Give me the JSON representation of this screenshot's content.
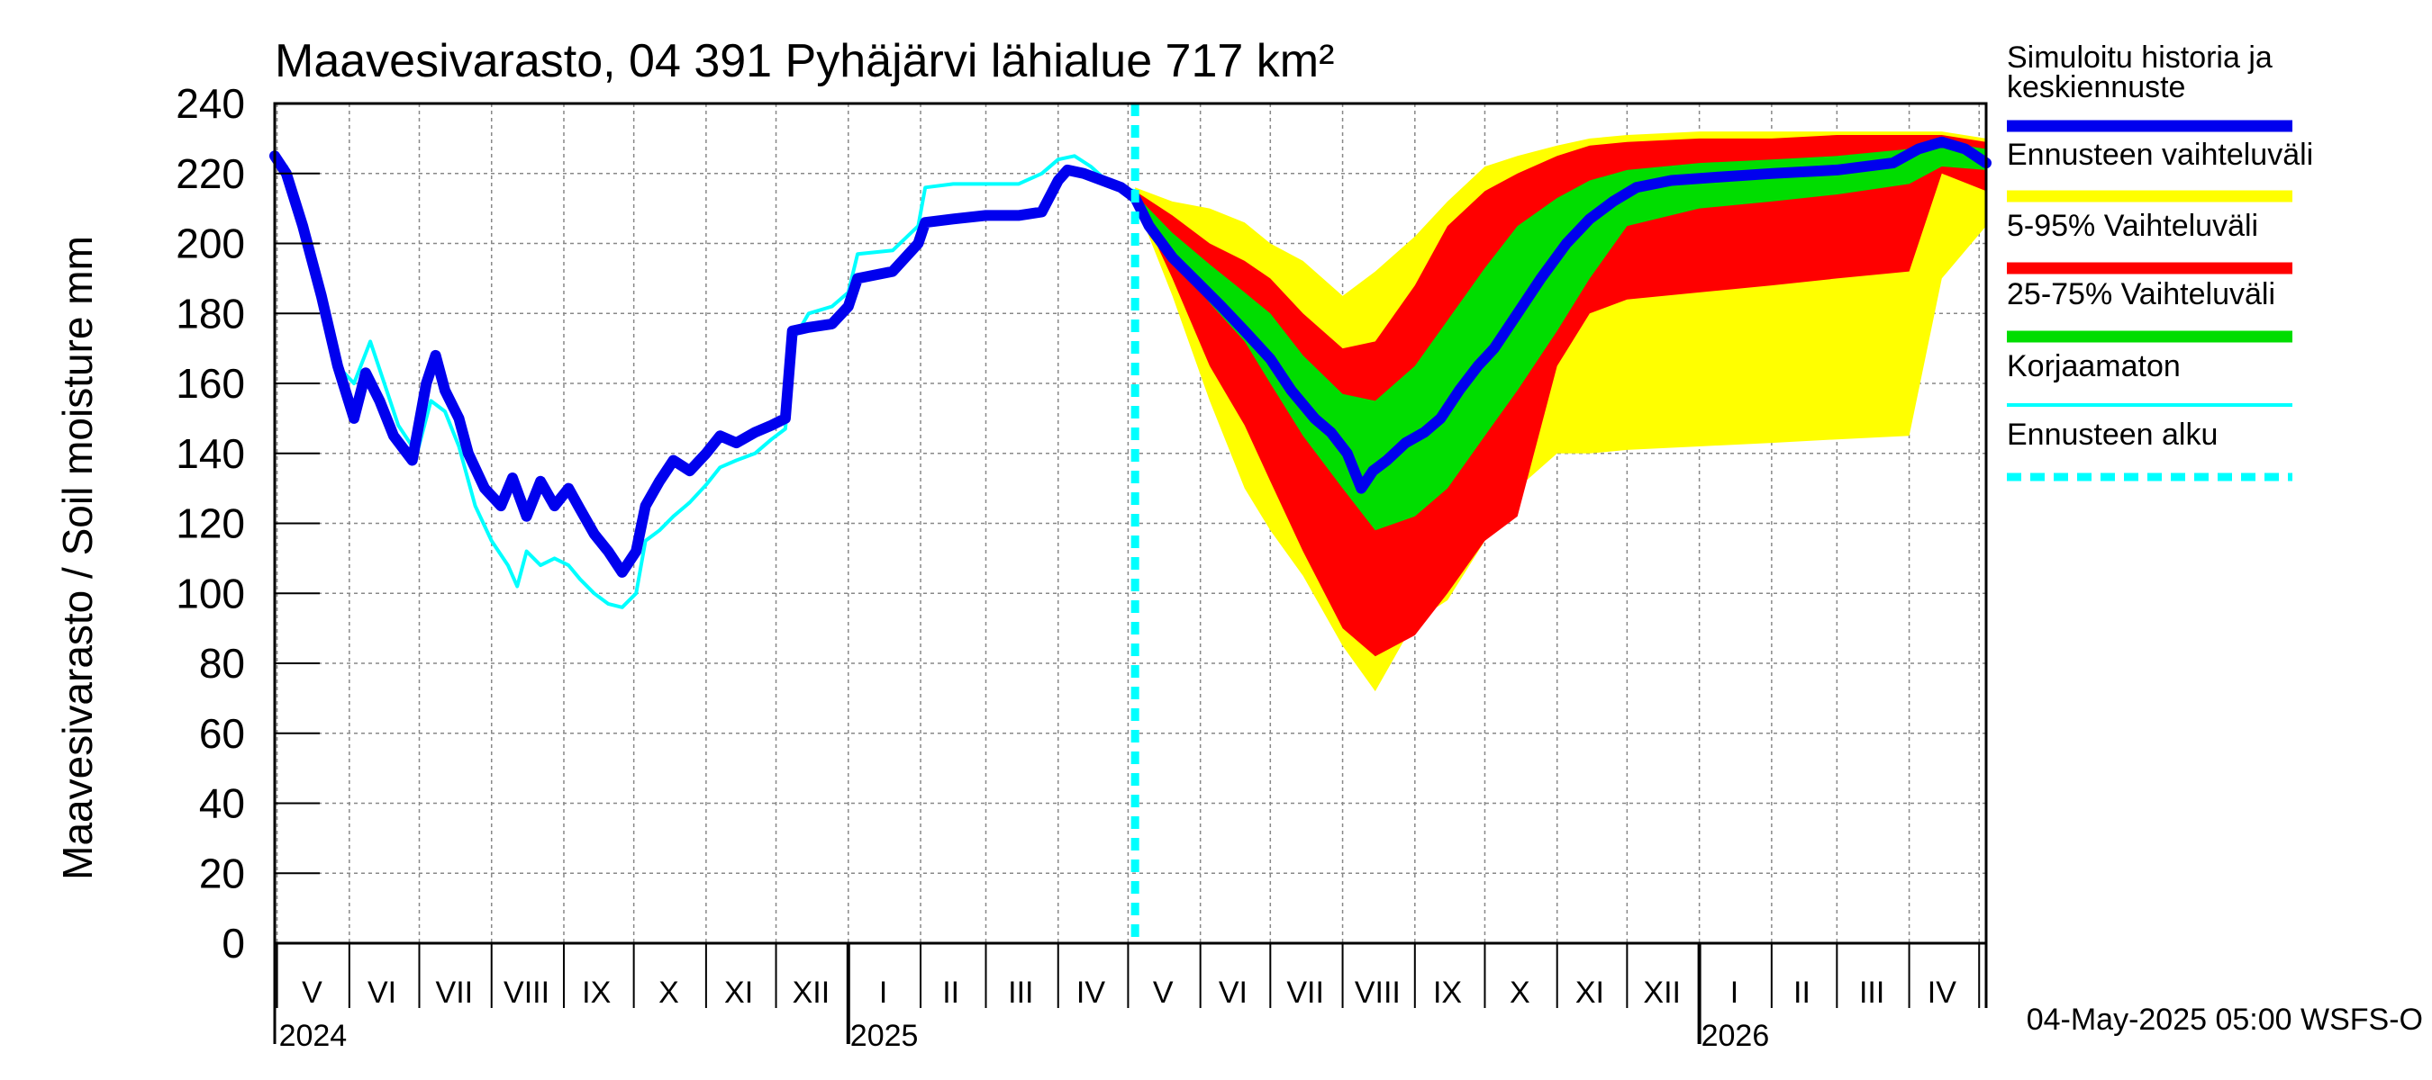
{
  "chart_data": {
    "type": "area",
    "title": "Maavesivarasto, 04 391 Pyhäjärvi lähialue 717 km²",
    "ylabel": "Maavesivarasto / Soil moisture   mm",
    "ylim": [
      0,
      240
    ],
    "yticks": [
      "0",
      "20",
      "40",
      "60",
      "80",
      "100",
      "120",
      "140",
      "160",
      "180",
      "200",
      "220",
      "240"
    ],
    "grid": true,
    "xlim": [
      "2024-04-30",
      "2026-05-04"
    ],
    "forecast_start": "2025-05-04",
    "footer": "04-May-2025 05:00 WSFS-O",
    "legend_position": "right",
    "month_labels": [
      {
        "label": "V",
        "date": "2024-05-16"
      },
      {
        "label": "VI",
        "date": "2024-06-15"
      },
      {
        "label": "VII",
        "date": "2024-07-16"
      },
      {
        "label": "VIII",
        "date": "2024-08-16"
      },
      {
        "label": "IX",
        "date": "2024-09-15"
      },
      {
        "label": "X",
        "date": "2024-10-16"
      },
      {
        "label": "XI",
        "date": "2024-11-15"
      },
      {
        "label": "XII",
        "date": "2024-12-16"
      },
      {
        "label": "I",
        "date": "2025-01-16"
      },
      {
        "label": "II",
        "date": "2025-02-14"
      },
      {
        "label": "III",
        "date": "2025-03-16"
      },
      {
        "label": "IV",
        "date": "2025-04-15"
      },
      {
        "label": "V",
        "date": "2025-05-16"
      },
      {
        "label": "VI",
        "date": "2025-06-15"
      },
      {
        "label": "VII",
        "date": "2025-07-16"
      },
      {
        "label": "VIII",
        "date": "2025-08-16"
      },
      {
        "label": "IX",
        "date": "2025-09-15"
      },
      {
        "label": "X",
        "date": "2025-10-16"
      },
      {
        "label": "XI",
        "date": "2025-11-15"
      },
      {
        "label": "XII",
        "date": "2025-12-16"
      },
      {
        "label": "I",
        "date": "2026-01-16"
      },
      {
        "label": "II",
        "date": "2026-02-14"
      },
      {
        "label": "III",
        "date": "2026-03-16"
      },
      {
        "label": "IV",
        "date": "2026-04-15"
      }
    ],
    "year_labels": [
      {
        "label": "2024",
        "date": "2024-05-01"
      },
      {
        "label": "2025",
        "date": "2025-01-01"
      },
      {
        "label": "2026",
        "date": "2026-01-01"
      }
    ],
    "legend": [
      {
        "label": "Simuloitu historia ja keskiennuste",
        "color": "#0000ee",
        "style": "thick"
      },
      {
        "label": "Ennusteen vaihteluväli",
        "color": "#ffff00",
        "style": "thick"
      },
      {
        "label": "5-95% Vaihteluväli",
        "color": "#ff0000",
        "style": "thick"
      },
      {
        "label": "25-75% Vaihteluväli",
        "color": "#00dd00",
        "style": "thick"
      },
      {
        "label": "Korjaamaton",
        "color": "#00ffff",
        "style": "thin"
      },
      {
        "label": "Ennusteen alku",
        "color": "#00ffff",
        "style": "dashed"
      }
    ],
    "series": [
      {
        "name": "Simuloitu historia ja keskiennuste",
        "color": "#0000ee",
        "points": [
          [
            "2024-04-30",
            225
          ],
          [
            "2024-05-05",
            220
          ],
          [
            "2024-05-12",
            205
          ],
          [
            "2024-05-20",
            185
          ],
          [
            "2024-05-27",
            165
          ],
          [
            "2024-06-03",
            150
          ],
          [
            "2024-06-08",
            163
          ],
          [
            "2024-06-14",
            155
          ],
          [
            "2024-06-20",
            145
          ],
          [
            "2024-06-28",
            138
          ],
          [
            "2024-07-04",
            160
          ],
          [
            "2024-07-08",
            168
          ],
          [
            "2024-07-12",
            158
          ],
          [
            "2024-07-18",
            150
          ],
          [
            "2024-07-22",
            140
          ],
          [
            "2024-07-29",
            130
          ],
          [
            "2024-08-05",
            125
          ],
          [
            "2024-08-10",
            133
          ],
          [
            "2024-08-16",
            122
          ],
          [
            "2024-08-22",
            132
          ],
          [
            "2024-08-28",
            125
          ],
          [
            "2024-09-03",
            130
          ],
          [
            "2024-09-08",
            124
          ],
          [
            "2024-09-14",
            117
          ],
          [
            "2024-09-20",
            112
          ],
          [
            "2024-09-26",
            106
          ],
          [
            "2024-10-02",
            112
          ],
          [
            "2024-10-06",
            125
          ],
          [
            "2024-10-12",
            132
          ],
          [
            "2024-10-18",
            138
          ],
          [
            "2024-10-25",
            135
          ],
          [
            "2024-11-01",
            140
          ],
          [
            "2024-11-07",
            145
          ],
          [
            "2024-11-14",
            143
          ],
          [
            "2024-11-22",
            146
          ],
          [
            "2024-11-29",
            148
          ],
          [
            "2024-12-05",
            150
          ],
          [
            "2024-12-08",
            175
          ],
          [
            "2024-12-15",
            176
          ],
          [
            "2024-12-25",
            177
          ],
          [
            "2025-01-01",
            182
          ],
          [
            "2025-01-05",
            190
          ],
          [
            "2025-01-20",
            192
          ],
          [
            "2025-01-31",
            200
          ],
          [
            "2025-02-03",
            206
          ],
          [
            "2025-02-15",
            207
          ],
          [
            "2025-03-01",
            208
          ],
          [
            "2025-03-15",
            208
          ],
          [
            "2025-03-25",
            209
          ],
          [
            "2025-04-01",
            218
          ],
          [
            "2025-04-05",
            221
          ],
          [
            "2025-04-12",
            220
          ],
          [
            "2025-04-20",
            218
          ],
          [
            "2025-04-28",
            216
          ],
          [
            "2025-05-04",
            213
          ],
          [
            "2025-05-10",
            205
          ],
          [
            "2025-05-20",
            196
          ],
          [
            "2025-06-01",
            188
          ],
          [
            "2025-06-10",
            182
          ],
          [
            "2025-06-20",
            175
          ],
          [
            "2025-07-01",
            167
          ],
          [
            "2025-07-10",
            158
          ],
          [
            "2025-07-20",
            150
          ],
          [
            "2025-07-27",
            146
          ],
          [
            "2025-08-03",
            140
          ],
          [
            "2025-08-09",
            130
          ],
          [
            "2025-08-14",
            135
          ],
          [
            "2025-08-20",
            138
          ],
          [
            "2025-08-28",
            143
          ],
          [
            "2025-09-05",
            146
          ],
          [
            "2025-09-12",
            150
          ],
          [
            "2025-09-20",
            158
          ],
          [
            "2025-09-28",
            165
          ],
          [
            "2025-10-05",
            170
          ],
          [
            "2025-10-15",
            180
          ],
          [
            "2025-10-25",
            190
          ],
          [
            "2025-11-05",
            200
          ],
          [
            "2025-11-15",
            207
          ],
          [
            "2025-11-25",
            212
          ],
          [
            "2025-12-05",
            216
          ],
          [
            "2025-12-20",
            218
          ],
          [
            "2026-01-10",
            219
          ],
          [
            "2026-02-01",
            220
          ],
          [
            "2026-03-01",
            221
          ],
          [
            "2026-03-25",
            223
          ],
          [
            "2026-04-05",
            227
          ],
          [
            "2026-04-15",
            229
          ],
          [
            "2026-04-25",
            227
          ],
          [
            "2026-05-04",
            223
          ]
        ]
      },
      {
        "name": "Korjaamaton",
        "color": "#00ffff",
        "points": [
          [
            "2024-04-30",
            225
          ],
          [
            "2024-05-05",
            222
          ],
          [
            "2024-05-12",
            208
          ],
          [
            "2024-05-20",
            188
          ],
          [
            "2024-05-27",
            165
          ],
          [
            "2024-06-03",
            160
          ],
          [
            "2024-06-10",
            172
          ],
          [
            "2024-06-16",
            160
          ],
          [
            "2024-06-22",
            148
          ],
          [
            "2024-06-30",
            140
          ],
          [
            "2024-07-06",
            155
          ],
          [
            "2024-07-12",
            152
          ],
          [
            "2024-07-18",
            142
          ],
          [
            "2024-07-25",
            125
          ],
          [
            "2024-08-01",
            115
          ],
          [
            "2024-08-08",
            108
          ],
          [
            "2024-08-12",
            102
          ],
          [
            "2024-08-16",
            112
          ],
          [
            "2024-08-22",
            108
          ],
          [
            "2024-08-28",
            110
          ],
          [
            "2024-09-03",
            108
          ],
          [
            "2024-09-08",
            104
          ],
          [
            "2024-09-14",
            100
          ],
          [
            "2024-09-20",
            97
          ],
          [
            "2024-09-26",
            96
          ],
          [
            "2024-10-02",
            100
          ],
          [
            "2024-10-06",
            115
          ],
          [
            "2024-10-12",
            118
          ],
          [
            "2024-10-18",
            122
          ],
          [
            "2024-10-25",
            126
          ],
          [
            "2024-11-01",
            131
          ],
          [
            "2024-11-07",
            136
          ],
          [
            "2024-11-14",
            138
          ],
          [
            "2024-11-22",
            140
          ],
          [
            "2024-11-29",
            144
          ],
          [
            "2024-12-05",
            147
          ],
          [
            "2024-12-08",
            172
          ],
          [
            "2024-12-15",
            180
          ],
          [
            "2024-12-25",
            182
          ],
          [
            "2025-01-01",
            186
          ],
          [
            "2025-01-05",
            197
          ],
          [
            "2025-01-20",
            198
          ],
          [
            "2025-01-31",
            205
          ],
          [
            "2025-02-03",
            216
          ],
          [
            "2025-02-15",
            217
          ],
          [
            "2025-03-01",
            217
          ],
          [
            "2025-03-15",
            217
          ],
          [
            "2025-03-25",
            220
          ],
          [
            "2025-04-01",
            224
          ],
          [
            "2025-04-08",
            225
          ],
          [
            "2025-04-15",
            222
          ],
          [
            "2025-04-25",
            216
          ],
          [
            "2025-05-04",
            215
          ]
        ]
      }
    ],
    "bands": [
      {
        "name": "Ennusteen vaihteluväli",
        "color": "#ffff00",
        "x": [
          "2025-05-04",
          "2025-05-20",
          "2025-06-05",
          "2025-06-20",
          "2025-07-01",
          "2025-07-15",
          "2025-08-01",
          "2025-08-15",
          "2025-09-01",
          "2025-09-15",
          "2025-10-01",
          "2025-10-15",
          "2025-11-01",
          "2025-11-15",
          "2025-12-01",
          "2026-01-01",
          "2026-02-01",
          "2026-03-01",
          "2026-04-01",
          "2026-04-15",
          "2026-05-04"
        ],
        "upper": [
          216,
          212,
          210,
          206,
          200,
          195,
          185,
          192,
          202,
          212,
          222,
          225,
          228,
          230,
          231,
          232,
          232,
          232,
          232,
          232,
          230
        ],
        "lower": [
          212,
          185,
          155,
          130,
          118,
          105,
          85,
          72,
          92,
          98,
          115,
          130,
          140,
          140,
          141,
          142,
          143,
          144,
          145,
          190,
          205
        ]
      },
      {
        "name": "5-95% Vaihteluväli",
        "color": "#ff0000",
        "x": [
          "2025-05-04",
          "2025-05-20",
          "2025-06-05",
          "2025-06-20",
          "2025-07-01",
          "2025-07-15",
          "2025-08-01",
          "2025-08-15",
          "2025-09-01",
          "2025-09-15",
          "2025-10-01",
          "2025-10-15",
          "2025-11-01",
          "2025-11-15",
          "2025-12-01",
          "2026-01-01",
          "2026-02-01",
          "2026-03-01",
          "2026-04-01",
          "2026-04-15",
          "2026-05-04"
        ],
        "upper": [
          215,
          208,
          200,
          195,
          190,
          180,
          170,
          172,
          188,
          205,
          215,
          220,
          225,
          228,
          229,
          230,
          230,
          231,
          231,
          231,
          229
        ],
        "lower": [
          213,
          190,
          165,
          148,
          132,
          112,
          90,
          82,
          88,
          100,
          115,
          122,
          165,
          180,
          184,
          186,
          188,
          190,
          192,
          220,
          215
        ]
      },
      {
        "name": "25-75% Vaihteluväli",
        "color": "#00dd00",
        "x": [
          "2025-05-04",
          "2025-05-20",
          "2025-06-05",
          "2025-06-20",
          "2025-07-01",
          "2025-07-15",
          "2025-08-01",
          "2025-08-15",
          "2025-09-01",
          "2025-09-15",
          "2025-10-01",
          "2025-10-15",
          "2025-11-01",
          "2025-11-15",
          "2025-12-01",
          "2026-01-01",
          "2026-02-01",
          "2026-03-01",
          "2026-04-01",
          "2026-04-15",
          "2026-05-04"
        ],
        "upper": [
          214,
          203,
          194,
          186,
          180,
          168,
          157,
          155,
          165,
          178,
          193,
          205,
          213,
          218,
          221,
          223,
          224,
          225,
          227,
          229,
          227
        ],
        "lower": [
          212,
          197,
          183,
          172,
          160,
          145,
          130,
          118,
          122,
          130,
          145,
          158,
          175,
          190,
          205,
          210,
          212,
          214,
          217,
          222,
          221
        ]
      }
    ]
  }
}
